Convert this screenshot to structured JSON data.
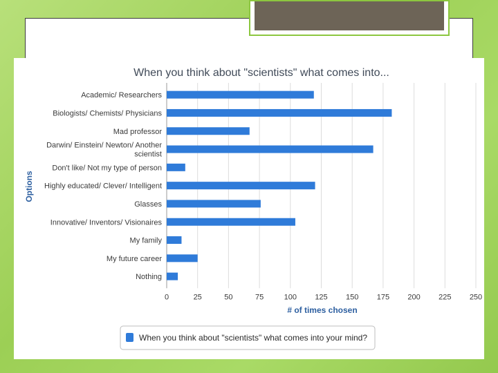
{
  "chart_data": {
    "type": "bar",
    "orientation": "horizontal",
    "title": "When you think about \"scientists\" what comes into...",
    "xlabel": "# of times chosen",
    "ylabel": "Options",
    "xlim": [
      0,
      250
    ],
    "x_ticks": [
      "0",
      "25",
      "50",
      "75",
      "100",
      "125",
      "150",
      "175",
      "200",
      "225",
      "250"
    ],
    "grid": true,
    "legend_position": "bottom",
    "bar_color": "#2f7bd9",
    "categories": [
      [
        "Academic/ Researchers"
      ],
      [
        "Biologists/ Chemists/ Physicians"
      ],
      [
        "Mad professor"
      ],
      [
        "Darwin/ Einstein/ Newton/ Another",
        "scientist"
      ],
      [
        "Don't like/ Not my type of person"
      ],
      [
        "Highly educated/ Clever/ Intelligent"
      ],
      [
        "Glasses"
      ],
      [
        "Innovative/ Inventors/ Visionaires"
      ],
      [
        "My family"
      ],
      [
        "My future career"
      ],
      [
        "Nothing"
      ]
    ],
    "series": [
      {
        "name": "When you think about \"scientists\" what comes into your mind?",
        "values": [
          119,
          182,
          67,
          167,
          15,
          120,
          76,
          104,
          12,
          25,
          9
        ]
      }
    ]
  },
  "colors": {
    "background_green": "#a4d65e",
    "accent_green": "#8cc63f",
    "title_box_fill": "#6d6457",
    "grid": "#dcdcdc",
    "text": "#3a3a3a",
    "title_text": "#404a58",
    "axis_title": "#2d5fa0"
  }
}
